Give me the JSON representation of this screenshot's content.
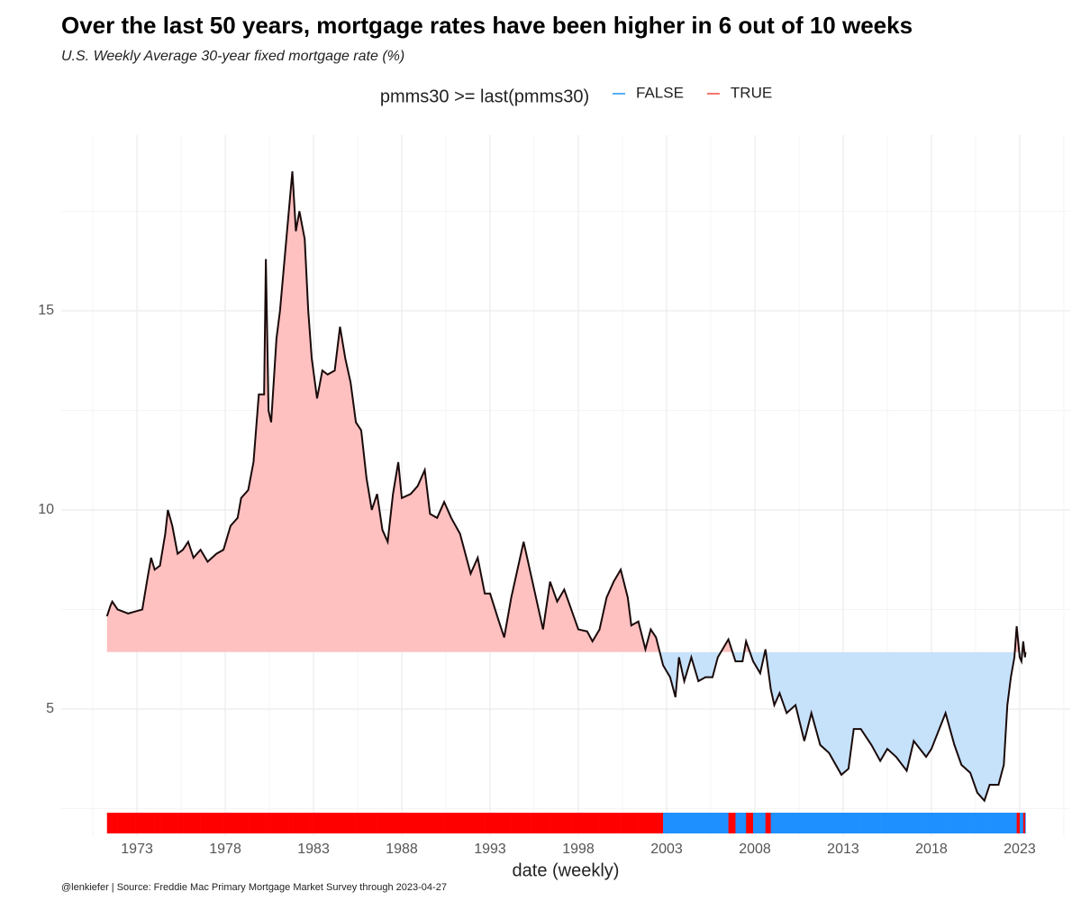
{
  "chart_data": {
    "type": "line",
    "title": "Over the last 50 years, mortgage rates have been higher in 6 out of 10 weeks",
    "subtitle": "U.S. Weekly Average 30-year fixed mortgage rate (%)",
    "x_label": "date (weekly)",
    "caption": "@lenkiefer | Source: Freddie Mac Primary Mortgage Market Survey through 2023-04-27",
    "legend": {
      "title": "pmms30 >= last(pmms30)",
      "position": "top",
      "entries": [
        {
          "label": "FALSE",
          "color": "#56b1f7",
          "fill": "#c6e2fb",
          "rug": "#1e90ff"
        },
        {
          "label": "TRUE",
          "color": "#f8766d",
          "fill": "#ffc0c0",
          "rug": "#ff0000"
        }
      ]
    },
    "line_color": "#1a0a0a",
    "grid": true,
    "xlim": [
      1968.71,
      2025.86
    ],
    "ylim": [
      1.81,
      19.41
    ],
    "xticks": [
      1973,
      1978,
      1983,
      1988,
      1993,
      1998,
      2003,
      2008,
      2013,
      2018,
      2023
    ],
    "yticks": [
      5,
      10,
      15
    ],
    "x": [
      1971.3,
      1971.5,
      1971.6,
      1971.9,
      1972.5,
      1972.9,
      1973.3,
      1973.6,
      1973.8,
      1974.0,
      1974.3,
      1974.6,
      1974.75,
      1975.0,
      1975.3,
      1975.6,
      1975.9,
      1976.2,
      1976.6,
      1977.0,
      1977.5,
      1977.9,
      1978.3,
      1978.7,
      1978.9,
      1979.3,
      1979.6,
      1979.9,
      1980.2,
      1980.3,
      1980.45,
      1980.6,
      1980.9,
      1981.1,
      1981.3,
      1981.6,
      1981.8,
      1982.0,
      1982.2,
      1982.5,
      1982.7,
      1982.9,
      1983.2,
      1983.5,
      1983.8,
      1984.2,
      1984.5,
      1984.8,
      1985.1,
      1985.4,
      1985.7,
      1986.0,
      1986.3,
      1986.6,
      1986.9,
      1987.2,
      1987.5,
      1987.8,
      1988.0,
      1988.5,
      1988.9,
      1989.3,
      1989.6,
      1990.0,
      1990.4,
      1990.8,
      1991.3,
      1991.9,
      1992.3,
      1992.7,
      1993.0,
      1993.5,
      1993.8,
      1994.2,
      1994.6,
      1994.9,
      1995.3,
      1995.7,
      1996.0,
      1996.4,
      1996.8,
      1997.2,
      1997.6,
      1998.0,
      1998.5,
      1998.8,
      1999.2,
      1999.6,
      2000.0,
      2000.4,
      2000.8,
      2001.0,
      2001.4,
      2001.8,
      2002.1,
      2002.4,
      2002.8,
      2003.2,
      2003.5,
      2003.7,
      2004.0,
      2004.4,
      2004.8,
      2005.2,
      2005.6,
      2005.9,
      2006.5,
      2006.9,
      2007.3,
      2007.5,
      2007.9,
      2008.3,
      2008.6,
      2008.9,
      2009.1,
      2009.4,
      2009.8,
      2010.3,
      2010.8,
      2011.2,
      2011.7,
      2012.2,
      2012.9,
      2013.3,
      2013.6,
      2014.0,
      2014.6,
      2015.1,
      2015.5,
      2016.0,
      2016.6,
      2017.0,
      2017.7,
      2018.0,
      2018.8,
      2019.3,
      2019.7,
      2020.2,
      2020.6,
      2021.0,
      2021.3,
      2021.8,
      2022.1,
      2022.3,
      2022.5,
      2022.7,
      2022.83,
      2023.0,
      2023.1,
      2023.2,
      2023.3,
      2023.33
    ],
    "values": [
      7.33,
      7.6,
      7.7,
      7.5,
      7.4,
      7.45,
      7.5,
      8.3,
      8.8,
      8.5,
      8.6,
      9.4,
      10.0,
      9.6,
      8.9,
      9.0,
      9.2,
      8.8,
      9.0,
      8.7,
      8.9,
      9.0,
      9.6,
      9.8,
      10.3,
      10.5,
      11.2,
      12.9,
      12.9,
      16.3,
      12.5,
      12.2,
      14.3,
      15.0,
      16.0,
      17.5,
      18.5,
      17.0,
      17.5,
      16.8,
      15.0,
      13.8,
      12.8,
      13.5,
      13.4,
      13.5,
      14.6,
      13.8,
      13.2,
      12.2,
      12.0,
      10.8,
      10.0,
      10.4,
      9.5,
      9.2,
      10.4,
      11.2,
      10.3,
      10.4,
      10.6,
      11.0,
      9.9,
      9.8,
      10.2,
      9.8,
      9.4,
      8.4,
      8.8,
      7.9,
      7.9,
      7.2,
      6.8,
      7.8,
      8.6,
      9.2,
      8.4,
      7.6,
      7.0,
      8.2,
      7.7,
      8.0,
      7.5,
      7.0,
      6.95,
      6.7,
      7.0,
      7.8,
      8.2,
      8.5,
      7.8,
      7.1,
      7.2,
      6.5,
      7.0,
      6.8,
      6.1,
      5.8,
      5.3,
      6.3,
      5.7,
      6.3,
      5.7,
      5.8,
      5.8,
      6.3,
      6.75,
      6.2,
      6.2,
      6.7,
      6.2,
      5.9,
      6.5,
      5.5,
      5.1,
      5.4,
      4.9,
      5.1,
      4.2,
      4.9,
      4.1,
      3.9,
      3.35,
      3.5,
      4.5,
      4.5,
      4.1,
      3.7,
      4.0,
      3.8,
      3.45,
      4.2,
      3.8,
      4.0,
      4.9,
      4.1,
      3.6,
      3.4,
      2.9,
      2.7,
      3.1,
      3.1,
      3.6,
      5.1,
      5.8,
      6.3,
      7.08,
      6.3,
      6.2,
      6.7,
      6.3,
      6.43
    ]
  }
}
